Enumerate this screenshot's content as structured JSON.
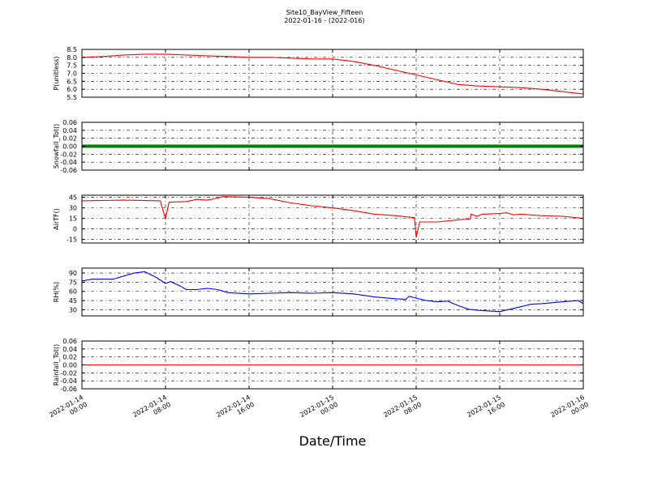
{
  "chart_data": {
    "type": "line",
    "title": "Site10_BayView_Fifteen",
    "subtitle": "2022-01-16 - (2022-016)",
    "xlabel": "Date/Time",
    "xlim": [
      "2022-01-14 00:00",
      "2022-01-16 00:00"
    ],
    "x_ticks": [
      {
        "value": "2022-01-14 00:00",
        "label": [
          "2022-01-14",
          "00:00"
        ]
      },
      {
        "value": "2022-01-14 08:00",
        "label": [
          "2022-01-14",
          "08:00"
        ]
      },
      {
        "value": "2022-01-14 16:00",
        "label": [
          "2022-01-14",
          "16:00"
        ]
      },
      {
        "value": "2022-01-15 00:00",
        "label": [
          "2022-01-15",
          "00:00"
        ]
      },
      {
        "value": "2022-01-15 08:00",
        "label": [
          "2022-01-15",
          "08:00"
        ]
      },
      {
        "value": "2022-01-15 16:00",
        "label": [
          "2022-01-15",
          "16:00"
        ]
      },
      {
        "value": "2022-01-16 00:00",
        "label": [
          "2022-01-16",
          "00:00"
        ]
      }
    ],
    "grid": true,
    "panels": [
      {
        "ylabel": "P(unitless)",
        "ylim": [
          5.5,
          8.5
        ],
        "yticks": [
          "8.5",
          "8.0",
          "7.5",
          "7.0",
          "6.5",
          "6.0",
          "5.5"
        ],
        "color": "#ff0000",
        "marker_style": "line",
        "points": [
          [
            "2022-01-14 00:00",
            8.0
          ],
          [
            "2022-01-14 02:00",
            8.05
          ],
          [
            "2022-01-14 04:00",
            8.15
          ],
          [
            "2022-01-14 06:00",
            8.2
          ],
          [
            "2022-01-14 08:00",
            8.2
          ],
          [
            "2022-01-14 10:00",
            8.15
          ],
          [
            "2022-01-14 12:00",
            8.1
          ],
          [
            "2022-01-14 14:00",
            8.05
          ],
          [
            "2022-01-14 16:00",
            8.0
          ],
          [
            "2022-01-14 18:00",
            8.0
          ],
          [
            "2022-01-14 20:00",
            7.95
          ],
          [
            "2022-01-14 22:00",
            7.9
          ],
          [
            "2022-01-15 00:00",
            7.9
          ],
          [
            "2022-01-15 02:00",
            7.75
          ],
          [
            "2022-01-15 04:00",
            7.5
          ],
          [
            "2022-01-15 06:00",
            7.2
          ],
          [
            "2022-01-15 08:00",
            6.9
          ],
          [
            "2022-01-15 10:00",
            6.6
          ],
          [
            "2022-01-15 12:00",
            6.3
          ],
          [
            "2022-01-15 14:00",
            6.2
          ],
          [
            "2022-01-15 16:00",
            6.15
          ],
          [
            "2022-01-15 18:00",
            6.1
          ],
          [
            "2022-01-15 20:00",
            6.0
          ],
          [
            "2022-01-15 22:00",
            5.85
          ],
          [
            "2022-01-16 00:00",
            5.7
          ]
        ]
      },
      {
        "ylabel": "Snowfall_Tot()",
        "ylim": [
          -0.06,
          0.06
        ],
        "yticks": [
          "0.06",
          "0.04",
          "0.02",
          "0.00",
          "-0.02",
          "-0.04",
          "-0.06"
        ],
        "color": "#008000",
        "marker_style": "markers",
        "points": [
          [
            "2022-01-14 00:00",
            0.0
          ],
          [
            "2022-01-16 00:00",
            0.0
          ]
        ]
      },
      {
        "ylabel": "AirTF()",
        "ylim": [
          -20,
          48
        ],
        "yticks": [
          "45",
          "30",
          "15",
          "0",
          "-15"
        ],
        "ytick_values": [
          45,
          30,
          15,
          0,
          -15
        ],
        "color": "#ff0000",
        "marker_style": "line",
        "points": [
          [
            "2022-01-14 00:00",
            40
          ],
          [
            "2022-01-14 04:00",
            41
          ],
          [
            "2022-01-14 07:30",
            40
          ],
          [
            "2022-01-14 08:00",
            14
          ],
          [
            "2022-01-14 08:20",
            38
          ],
          [
            "2022-01-14 10:00",
            39
          ],
          [
            "2022-01-14 11:00",
            42
          ],
          [
            "2022-01-14 12:00",
            41
          ],
          [
            "2022-01-14 13:00",
            44
          ],
          [
            "2022-01-14 13:30",
            46
          ],
          [
            "2022-01-14 16:00",
            45
          ],
          [
            "2022-01-14 18:00",
            43
          ],
          [
            "2022-01-14 20:00",
            37
          ],
          [
            "2022-01-14 22:00",
            33
          ],
          [
            "2022-01-15 00:00",
            30
          ],
          [
            "2022-01-15 02:00",
            26
          ],
          [
            "2022-01-15 04:00",
            21
          ],
          [
            "2022-01-15 06:00",
            19
          ],
          [
            "2022-01-15 07:50",
            16
          ],
          [
            "2022-01-15 08:00",
            -12
          ],
          [
            "2022-01-15 08:20",
            10
          ],
          [
            "2022-01-15 10:00",
            10
          ],
          [
            "2022-01-15 12:00",
            13
          ],
          [
            "2022-01-15 13:10",
            14
          ],
          [
            "2022-01-15 13:15",
            21
          ],
          [
            "2022-01-15 13:50",
            18
          ],
          [
            "2022-01-15 14:20",
            21
          ],
          [
            "2022-01-15 16:00",
            22
          ],
          [
            "2022-01-15 16:40",
            23
          ],
          [
            "2022-01-15 17:20",
            20
          ],
          [
            "2022-01-15 18:00",
            21
          ],
          [
            "2022-01-15 20:00",
            19
          ],
          [
            "2022-01-15 22:00",
            18
          ],
          [
            "2022-01-16 00:00",
            15
          ]
        ]
      },
      {
        "ylabel": "RH(%)",
        "ylim": [
          20,
          98
        ],
        "yticks": [
          "90",
          "75",
          "60",
          "45",
          "30"
        ],
        "ytick_values": [
          90,
          75,
          60,
          45,
          30
        ],
        "color": "#0000ff",
        "marker_style": "line",
        "points": [
          [
            "2022-01-14 00:00",
            77
          ],
          [
            "2022-01-14 01:00",
            80
          ],
          [
            "2022-01-14 03:00",
            80
          ],
          [
            "2022-01-14 04:00",
            85
          ],
          [
            "2022-01-14 05:00",
            90
          ],
          [
            "2022-01-14 06:00",
            92
          ],
          [
            "2022-01-14 07:00",
            84
          ],
          [
            "2022-01-14 08:00",
            73
          ],
          [
            "2022-01-14 08:30",
            76
          ],
          [
            "2022-01-14 09:30",
            68
          ],
          [
            "2022-01-14 10:00",
            63
          ],
          [
            "2022-01-14 11:00",
            63
          ],
          [
            "2022-01-14 12:00",
            65
          ],
          [
            "2022-01-14 13:00",
            63
          ],
          [
            "2022-01-14 14:00",
            58
          ],
          [
            "2022-01-14 16:00",
            56
          ],
          [
            "2022-01-14 18:00",
            57
          ],
          [
            "2022-01-14 20:00",
            58
          ],
          [
            "2022-01-14 22:00",
            57
          ],
          [
            "2022-01-15 00:00",
            58
          ],
          [
            "2022-01-15 02:00",
            56
          ],
          [
            "2022-01-15 04:00",
            51
          ],
          [
            "2022-01-15 06:00",
            48
          ],
          [
            "2022-01-15 07:00",
            47
          ],
          [
            "2022-01-15 07:20",
            52
          ],
          [
            "2022-01-15 08:00",
            49
          ],
          [
            "2022-01-15 09:00",
            45
          ],
          [
            "2022-01-15 10:00",
            43
          ],
          [
            "2022-01-15 11:00",
            44
          ],
          [
            "2022-01-15 12:00",
            37
          ],
          [
            "2022-01-15 13:00",
            31
          ],
          [
            "2022-01-15 14:00",
            29
          ],
          [
            "2022-01-15 15:00",
            28
          ],
          [
            "2022-01-15 16:00",
            27
          ],
          [
            "2022-01-15 17:00",
            31
          ],
          [
            "2022-01-15 18:00",
            35
          ],
          [
            "2022-01-15 19:00",
            39
          ],
          [
            "2022-01-15 20:00",
            40
          ],
          [
            "2022-01-15 22:00",
            43
          ],
          [
            "2022-01-15 23:30",
            45
          ],
          [
            "2022-01-16 00:00",
            40
          ]
        ]
      },
      {
        "ylabel": "Rainfall_Tot()",
        "ylim": [
          -0.06,
          0.06
        ],
        "yticks": [
          "0.06",
          "0.04",
          "0.02",
          "0.00",
          "-0.02",
          "-0.04",
          "-0.06"
        ],
        "color": "#ff0000",
        "marker_style": "line",
        "points": [
          [
            "2022-01-14 00:00",
            0.0
          ],
          [
            "2022-01-16 00:00",
            0.0
          ]
        ]
      }
    ]
  }
}
